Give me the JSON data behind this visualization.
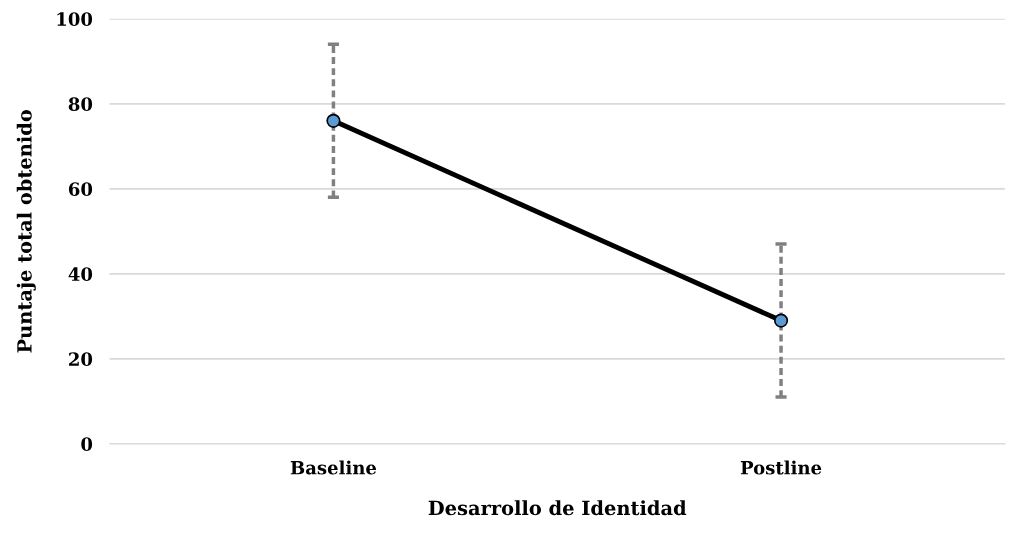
{
  "chart_data": {
    "type": "line",
    "xlabel": "Desarrollo de Identidad",
    "ylabel": "Puntaje total obtenido",
    "categories": [
      "Baseline",
      "Postline"
    ],
    "series": [
      {
        "color": "#000000",
        "values": [
          76,
          29
        ],
        "errors": [
          18,
          18
        ]
      }
    ],
    "ylim": [
      0,
      100
    ],
    "yticks": [
      0,
      20,
      40,
      60,
      80,
      100
    ],
    "grid": "y",
    "marker": "circle",
    "line_style": "solid",
    "legend": false
  }
}
